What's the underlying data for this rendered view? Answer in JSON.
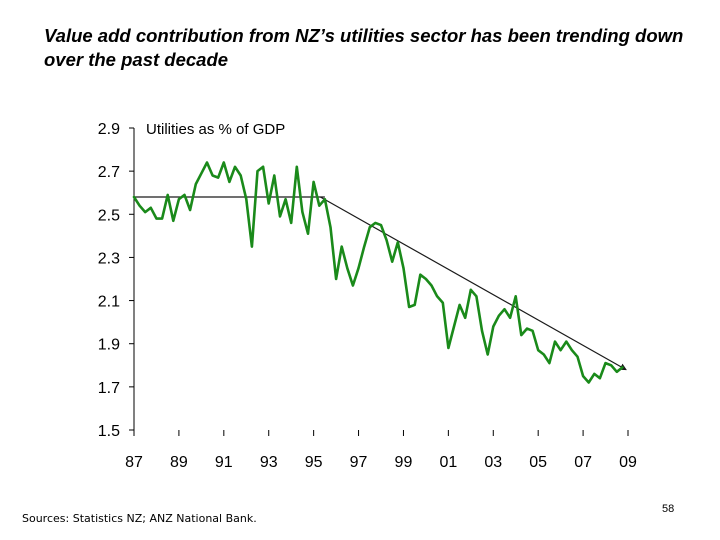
{
  "slide": {
    "title": "Value add contribution from NZ’s utilities sector has been trending down over the past decade",
    "source": "Sources:  Statistics NZ; ANZ National Bank.",
    "page_number": "58"
  },
  "chart_data": {
    "type": "line",
    "title": "",
    "inner_label": "Utilities as % of GDP",
    "xlabel": "",
    "ylabel": "",
    "xlim": [
      1987,
      2009
    ],
    "ylim": [
      1.5,
      2.9
    ],
    "y_ticks": [
      1.5,
      1.7,
      1.9,
      2.1,
      2.3,
      2.5,
      2.7,
      2.9
    ],
    "y_tick_labels": [
      "1.5",
      "1.7",
      "1.9",
      "2.1",
      "2.3",
      "2.5",
      "2.7",
      "2.9"
    ],
    "x_ticks": [
      1987,
      1989,
      1991,
      1993,
      1995,
      1997,
      1999,
      2001,
      2003,
      2005,
      2007,
      2009
    ],
    "x_tick_labels": [
      "87",
      "89",
      "91",
      "93",
      "95",
      "97",
      "99",
      "01",
      "03",
      "05",
      "07",
      "09"
    ],
    "grid": false,
    "legend": "none",
    "series": [
      {
        "color": "#1a8a1a",
        "points": [
          [
            1987.0,
            2.58
          ],
          [
            1987.25,
            2.54
          ],
          [
            1987.5,
            2.51
          ],
          [
            1987.75,
            2.53
          ],
          [
            1988.0,
            2.48
          ],
          [
            1988.25,
            2.48
          ],
          [
            1988.5,
            2.59
          ],
          [
            1988.75,
            2.47
          ],
          [
            1989.0,
            2.57
          ],
          [
            1989.25,
            2.59
          ],
          [
            1989.5,
            2.52
          ],
          [
            1989.75,
            2.64
          ],
          [
            1990.0,
            2.69
          ],
          [
            1990.25,
            2.74
          ],
          [
            1990.5,
            2.68
          ],
          [
            1990.75,
            2.67
          ],
          [
            1991.0,
            2.74
          ],
          [
            1991.25,
            2.65
          ],
          [
            1991.5,
            2.72
          ],
          [
            1991.75,
            2.68
          ],
          [
            1992.0,
            2.57
          ],
          [
            1992.25,
            2.35
          ],
          [
            1992.5,
            2.7
          ],
          [
            1992.75,
            2.72
          ],
          [
            1993.0,
            2.55
          ],
          [
            1993.25,
            2.68
          ],
          [
            1993.5,
            2.49
          ],
          [
            1993.75,
            2.57
          ],
          [
            1994.0,
            2.46
          ],
          [
            1994.25,
            2.72
          ],
          [
            1994.5,
            2.51
          ],
          [
            1994.75,
            2.41
          ],
          [
            1995.0,
            2.65
          ],
          [
            1995.25,
            2.54
          ],
          [
            1995.5,
            2.57
          ],
          [
            1995.75,
            2.44
          ],
          [
            1996.0,
            2.2
          ],
          [
            1996.25,
            2.35
          ],
          [
            1996.5,
            2.25
          ],
          [
            1996.75,
            2.17
          ],
          [
            1997.0,
            2.25
          ],
          [
            1997.25,
            2.35
          ],
          [
            1997.5,
            2.44
          ],
          [
            1997.75,
            2.46
          ],
          [
            1998.0,
            2.45
          ],
          [
            1998.25,
            2.38
          ],
          [
            1998.5,
            2.28
          ],
          [
            1998.75,
            2.37
          ],
          [
            1999.0,
            2.25
          ],
          [
            1999.25,
            2.07
          ],
          [
            1999.5,
            2.08
          ],
          [
            1999.75,
            2.22
          ],
          [
            2000.0,
            2.2
          ],
          [
            2000.25,
            2.17
          ],
          [
            2000.5,
            2.12
          ],
          [
            2000.75,
            2.09
          ],
          [
            2001.0,
            1.88
          ],
          [
            2001.25,
            1.98
          ],
          [
            2001.5,
            2.08
          ],
          [
            2001.75,
            2.02
          ],
          [
            2002.0,
            2.15
          ],
          [
            2002.25,
            2.12
          ],
          [
            2002.5,
            1.96
          ],
          [
            2002.75,
            1.85
          ],
          [
            2003.0,
            1.98
          ],
          [
            2003.25,
            2.03
          ],
          [
            2003.5,
            2.06
          ],
          [
            2003.75,
            2.02
          ],
          [
            2004.0,
            2.12
          ],
          [
            2004.25,
            1.94
          ],
          [
            2004.5,
            1.97
          ],
          [
            2004.75,
            1.96
          ],
          [
            2005.0,
            1.87
          ],
          [
            2005.25,
            1.85
          ],
          [
            2005.5,
            1.81
          ],
          [
            2005.75,
            1.91
          ],
          [
            2006.0,
            1.87
          ],
          [
            2006.25,
            1.91
          ],
          [
            2006.5,
            1.87
          ],
          [
            2006.75,
            1.84
          ],
          [
            2007.0,
            1.75
          ],
          [
            2007.25,
            1.72
          ],
          [
            2007.5,
            1.76
          ],
          [
            2007.75,
            1.74
          ],
          [
            2008.0,
            1.81
          ],
          [
            2008.25,
            1.8
          ],
          [
            2008.5,
            1.77
          ],
          [
            2008.75,
            1.79
          ]
        ]
      }
    ],
    "annotations": {
      "flat_line": {
        "from": [
          1987.0,
          2.58
        ],
        "to": [
          1995.5,
          2.58
        ],
        "color": "#1a1a1a"
      },
      "trend_arrow": {
        "from": [
          1995.3,
          2.58
        ],
        "to": [
          2009.0,
          1.78
        ],
        "color": "#1a1a1a"
      }
    }
  }
}
